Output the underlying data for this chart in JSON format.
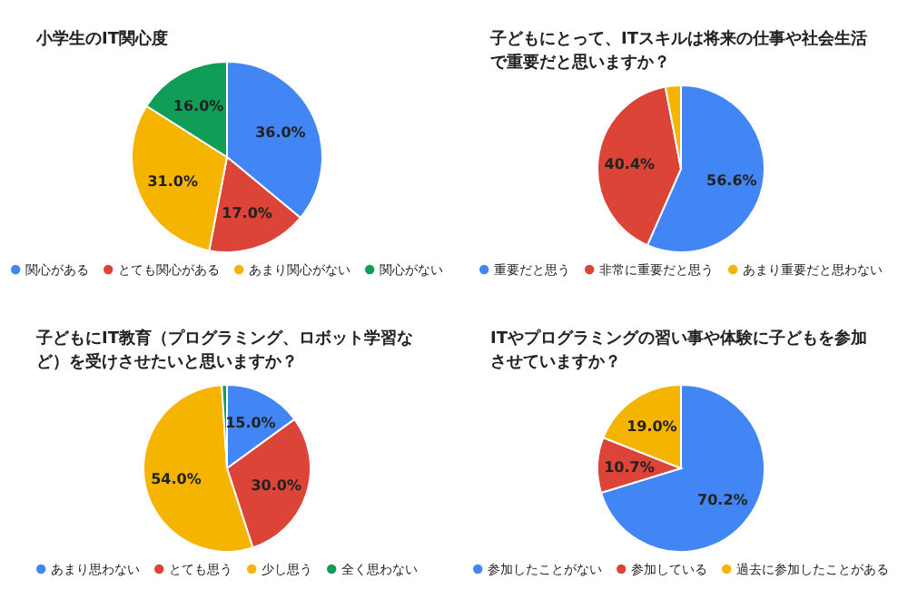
{
  "chart_data": [
    {
      "type": "pie",
      "title": "小学生のIT関心度",
      "categories": [
        "関心がある",
        "とても関心がある",
        "あまり関心がない",
        "関心がない"
      ],
      "values": [
        36.0,
        17.0,
        31.0,
        16.0
      ],
      "colors": [
        "#4285f4",
        "#db4437",
        "#f4b400",
        "#0f9d58"
      ],
      "value_labels": [
        "36.0%",
        "17.0%",
        "31.0%",
        "16.0%"
      ],
      "legend": "bottom"
    },
    {
      "type": "pie",
      "title": "子どもにとって、ITスキルは将来の仕事や社会生活で重要だと思いますか？",
      "categories": [
        "重要だと思う",
        "非常に重要だと思う",
        "あまり重要だと思わない"
      ],
      "values": [
        56.6,
        40.4,
        3.0
      ],
      "colors": [
        "#4285f4",
        "#db4437",
        "#f4b400"
      ],
      "value_labels": [
        "56.6%",
        "40.4%",
        null
      ],
      "legend": "bottom"
    },
    {
      "type": "pie",
      "title": "子どもにIT教育（プログラミング、ロボット学習など）を受けさせたいと思いますか？",
      "categories": [
        "あまり思わない",
        "とても思う",
        "少し思う",
        "全く思わない"
      ],
      "values": [
        15.0,
        30.0,
        54.0,
        1.0
      ],
      "colors": [
        "#4285f4",
        "#db4437",
        "#f4b400",
        "#0f9d58"
      ],
      "value_labels": [
        "15.0%",
        "30.0%",
        "54.0%",
        null
      ],
      "legend": "bottom"
    },
    {
      "type": "pie",
      "title": "ITやプログラミングの習い事や体験に子どもを参加させていますか？",
      "categories": [
        "参加したことがない",
        "参加している",
        "過去に参加したことがある"
      ],
      "values": [
        70.2,
        10.7,
        19.0
      ],
      "colors": [
        "#4285f4",
        "#db4437",
        "#f4b400"
      ],
      "value_labels": [
        "70.2%",
        "10.7%",
        "19.0%"
      ],
      "legend": "bottom"
    }
  ]
}
